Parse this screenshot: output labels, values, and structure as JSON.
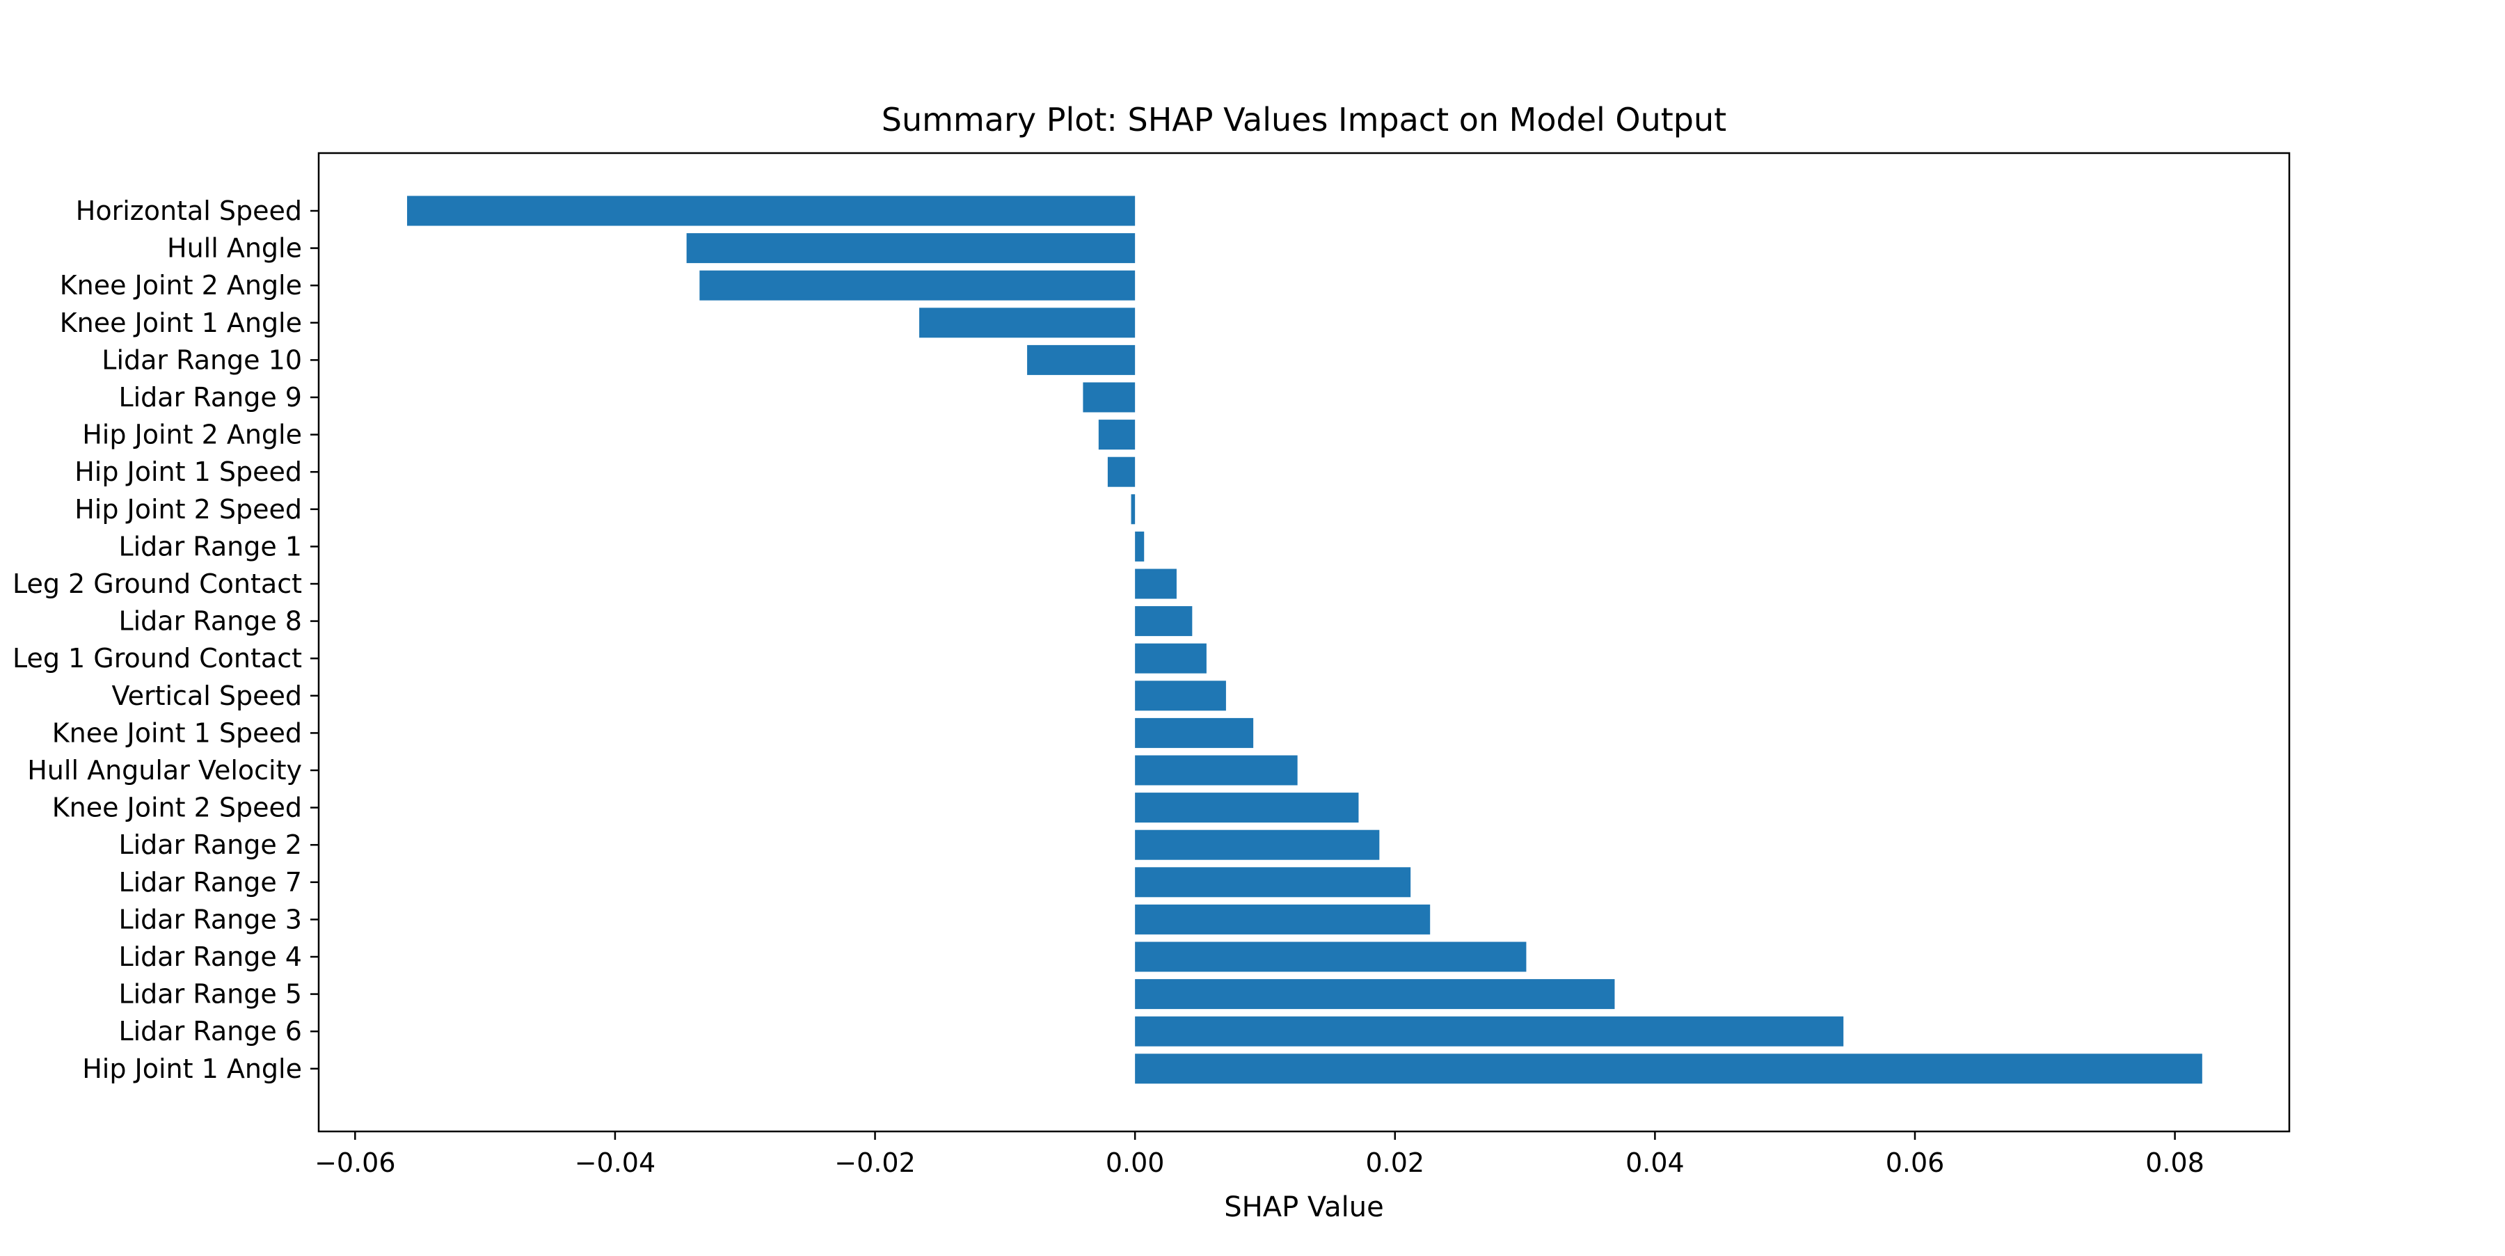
{
  "chart_data": {
    "type": "bar",
    "orientation": "horizontal",
    "title": "Summary Plot: SHAP Values Impact on Model Output",
    "xlabel": "SHAP Value",
    "ylabel": "",
    "xlim": [
      -0.0628,
      0.0888
    ],
    "xticks": [
      -0.06,
      -0.04,
      -0.02,
      0.0,
      0.02,
      0.04,
      0.06,
      0.08
    ],
    "xtick_labels": [
      "−0.06",
      "−0.04",
      "−0.02",
      "0.00",
      "0.02",
      "0.04",
      "0.06",
      "0.08"
    ],
    "grid": false,
    "legend": "none",
    "bar_color": "#1f77b4",
    "categories": [
      "Horizontal Speed",
      "Hull Angle",
      "Knee Joint 2 Angle",
      "Knee Joint 1 Angle",
      "Lidar Range 10",
      "Lidar Range 9",
      "Hip Joint 2 Angle",
      "Hip Joint 1 Speed",
      "Hip Joint 2 Speed",
      "Lidar Range 1",
      "Leg 2 Ground Contact",
      "Lidar Range 8",
      "Leg 1 Ground Contact",
      "Vertical Speed",
      "Knee Joint 1 Speed",
      "Hull Angular Velocity",
      "Knee Joint 2 Speed",
      "Lidar Range 2",
      "Lidar Range 7",
      "Lidar Range 3",
      "Lidar Range 4",
      "Lidar Range 5",
      "Lidar Range 6",
      "Hip Joint 1 Angle"
    ],
    "values": [
      -0.056,
      -0.0345,
      -0.0335,
      -0.0166,
      -0.0083,
      -0.004,
      -0.0028,
      -0.0021,
      -0.0003,
      0.0007,
      0.0032,
      0.0044,
      0.0055,
      0.007,
      0.0091,
      0.0125,
      0.0172,
      0.0188,
      0.0212,
      0.0227,
      0.0301,
      0.0369,
      0.0545,
      0.0821
    ]
  }
}
